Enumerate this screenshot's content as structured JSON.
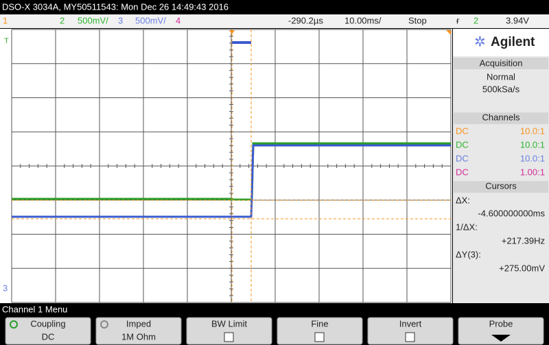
{
  "status_bar": {
    "title": "DSO-X 3034A, MY50511543: Mon Dec 26 14:49:43 2016"
  },
  "channel_bar": {
    "ch1": "1",
    "ch2": "2",
    "ch2_scale": "500mV/",
    "ch3": "3",
    "ch3_scale": "500mV/",
    "ch4": "4",
    "delay": "-290.2µs",
    "timebase": "10.00ms/",
    "run_state": "Stop",
    "trigger_source": "2",
    "trigger_level": "3.94V"
  },
  "graticule": {
    "ground_marker": "3"
  },
  "side_panel": {
    "brand": "Agilent",
    "acquisition": {
      "title": "Acquisition",
      "mode": "Normal",
      "rate": "500kSa/s"
    },
    "channels": {
      "title": "Channels",
      "rows": [
        {
          "coupling": "DC",
          "probe": "10.0:1"
        },
        {
          "coupling": "DC",
          "probe": "10.0:1"
        },
        {
          "coupling": "DC",
          "probe": "10.0:1"
        },
        {
          "coupling": "DC",
          "probe": "1.00:1"
        }
      ]
    },
    "cursors": {
      "title": "Cursors",
      "dx_label": "ΔX:",
      "dx": "-4.600000000ms",
      "inv_label": "1/ΔX:",
      "inv": "+217.39Hz",
      "dy_label": "ΔY(3):",
      "dy": "+275.00mV"
    }
  },
  "menu": {
    "title": "Channel 1 Menu",
    "softkeys": [
      {
        "label": "Coupling",
        "value": "DC"
      },
      {
        "label": "Imped",
        "value": "1M Ohm"
      },
      {
        "label": "BW Limit"
      },
      {
        "label": "Fine"
      },
      {
        "label": "Invert"
      },
      {
        "label": "Probe"
      }
    ]
  }
}
